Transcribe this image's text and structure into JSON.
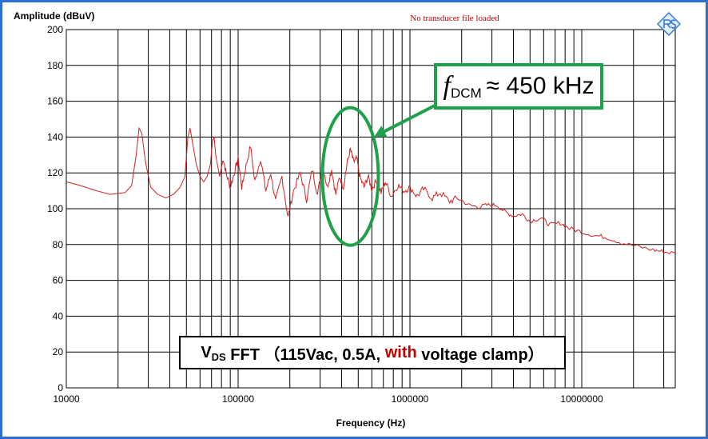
{
  "chart_data": {
    "type": "line",
    "title": "",
    "ylabel": "Amplitude (dBuV)",
    "xlabel": "Frequency (Hz)",
    "xscale": "log",
    "xlim": [
      10000,
      35000000
    ],
    "ylim": [
      0,
      200
    ],
    "yticks": [
      0,
      20,
      40,
      60,
      80,
      100,
      120,
      140,
      160,
      180,
      200
    ],
    "xtick_labels": [
      "10000",
      "100000",
      "1000000",
      "10000000"
    ],
    "xticks": [
      10000,
      100000,
      1000000,
      10000000
    ],
    "grid": true,
    "line_color": "#d32020",
    "series": [
      {
        "values": [
          [
            10000,
            115
          ],
          [
            12000,
            113
          ],
          [
            15000,
            110
          ],
          [
            18000,
            108
          ],
          [
            22000,
            109
          ],
          [
            24000,
            113
          ],
          [
            25500,
            130
          ],
          [
            26500,
            145
          ],
          [
            27500,
            142
          ],
          [
            29000,
            125
          ],
          [
            31000,
            112
          ],
          [
            34000,
            108
          ],
          [
            38000,
            106
          ],
          [
            42000,
            108
          ],
          [
            46000,
            112
          ],
          [
            49000,
            118
          ],
          [
            51000,
            140
          ],
          [
            52500,
            145
          ],
          [
            54000,
            138
          ],
          [
            57000,
            125
          ],
          [
            60000,
            118
          ],
          [
            63000,
            115
          ],
          [
            66000,
            118
          ],
          [
            69000,
            125
          ],
          [
            71000,
            138
          ],
          [
            72500,
            140
          ],
          [
            74000,
            130
          ],
          [
            78000,
            118
          ],
          [
            82000,
            128
          ],
          [
            85000,
            120
          ],
          [
            90000,
            112
          ],
          [
            95000,
            120
          ],
          [
            100000,
            128
          ],
          [
            105000,
            112
          ],
          [
            110000,
            122
          ],
          [
            118000,
            135
          ],
          [
            125000,
            115
          ],
          [
            135000,
            128
          ],
          [
            145000,
            110
          ],
          [
            155000,
            120
          ],
          [
            165000,
            104
          ],
          [
            180000,
            118
          ],
          [
            195000,
            95
          ],
          [
            210000,
            110
          ],
          [
            230000,
            120
          ],
          [
            250000,
            105
          ],
          [
            270000,
            122
          ],
          [
            290000,
            108
          ],
          [
            310000,
            125
          ],
          [
            330000,
            112
          ],
          [
            350000,
            122
          ],
          [
            370000,
            108
          ],
          [
            390000,
            118
          ],
          [
            410000,
            112
          ],
          [
            430000,
            125
          ],
          [
            450000,
            133
          ],
          [
            470000,
            126
          ],
          [
            490000,
            128
          ],
          [
            510000,
            118
          ],
          [
            540000,
            112
          ],
          [
            570000,
            118
          ],
          [
            600000,
            111
          ],
          [
            640000,
            116
          ],
          [
            680000,
            109
          ],
          [
            720000,
            115
          ],
          [
            780000,
            107
          ],
          [
            850000,
            113
          ],
          [
            920000,
            110
          ],
          [
            1000000,
            112
          ],
          [
            1100000,
            107
          ],
          [
            1200000,
            111
          ],
          [
            1350000,
            106
          ],
          [
            1500000,
            109
          ],
          [
            1700000,
            104
          ],
          [
            1900000,
            106
          ],
          [
            2200000,
            102
          ],
          [
            2500000,
            101
          ],
          [
            2800000,
            102
          ],
          [
            3200000,
            102
          ],
          [
            3600000,
            98
          ],
          [
            4000000,
            96
          ],
          [
            4500000,
            97
          ],
          [
            5000000,
            93
          ],
          [
            5800000,
            95
          ],
          [
            6500000,
            91
          ],
          [
            7500000,
            92
          ],
          [
            8500000,
            89
          ],
          [
            10000000,
            87
          ],
          [
            12000000,
            85
          ],
          [
            14000000,
            84
          ],
          [
            17000000,
            81
          ],
          [
            21000000,
            79
          ],
          [
            26000000,
            77
          ],
          [
            30000000,
            76
          ],
          [
            35000000,
            75
          ]
        ]
      }
    ],
    "annotations": {
      "no_transducer": "No transducer file loaded",
      "ellipse_center": [
        450000,
        118
      ],
      "callout_f": "f",
      "callout_sub": "DCM",
      "callout_rest": "≈ 450 kHz",
      "caption_v": "V",
      "caption_sub": "DS",
      "caption_a": " FFT （115Vac, 0.5A, ",
      "caption_red": "with",
      "caption_b": " voltage clamp）",
      "highlight_color": "#1fa04a"
    }
  }
}
